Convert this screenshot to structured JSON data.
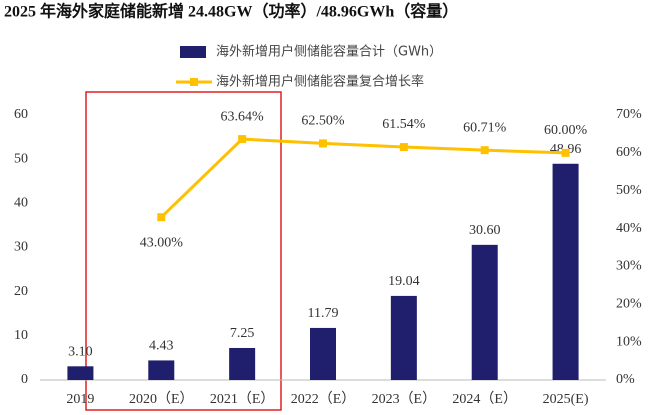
{
  "chart_data": {
    "type": "bar",
    "title": "2025 年海外家庭储能新增 24.48GW（功率）/48.96GWh（容量）",
    "categories": [
      "2019",
      "2020（E）",
      "2021（E）",
      "2022（E）",
      "2023（E）",
      "2024（E）",
      "2025(E)"
    ],
    "series": [
      {
        "name": "海外新增用户侧储能容量合计（GWh）",
        "color": "#1f1f6e",
        "type": "bar",
        "values": [
          3.1,
          4.43,
          7.25,
          11.79,
          19.04,
          30.6,
          48.96
        ],
        "value_labels": [
          "3.10",
          "4.43",
          "7.25",
          "11.79",
          "19.04",
          "30.60",
          "48.96"
        ]
      },
      {
        "name": "海外新增用户侧储能容量复合增长率",
        "color": "#ffc000",
        "type": "line",
        "axis": "y2",
        "values": [
          null,
          43.0,
          63.64,
          62.5,
          61.54,
          60.71,
          60.0
        ],
        "value_labels": [
          null,
          "43.00%",
          "63.64%",
          "62.50%",
          "61.54%",
          "60.71%",
          "60.00%"
        ]
      }
    ],
    "ylim": [
      0,
      60
    ],
    "yticks": [
      0,
      10,
      20,
      30,
      40,
      50,
      60
    ],
    "y2lim": [
      0,
      70
    ],
    "y2ticks": [
      {
        "value": 0,
        "label": "0%"
      },
      {
        "value": 10,
        "label": "10%"
      },
      {
        "value": 20,
        "label": "20%"
      },
      {
        "value": 30,
        "label": "30%"
      },
      {
        "value": 40,
        "label": "40%"
      },
      {
        "value": 50,
        "label": "50%"
      },
      {
        "value": 60,
        "label": "60%"
      },
      {
        "value": 70,
        "label": "70%"
      }
    ],
    "grid": false
  }
}
